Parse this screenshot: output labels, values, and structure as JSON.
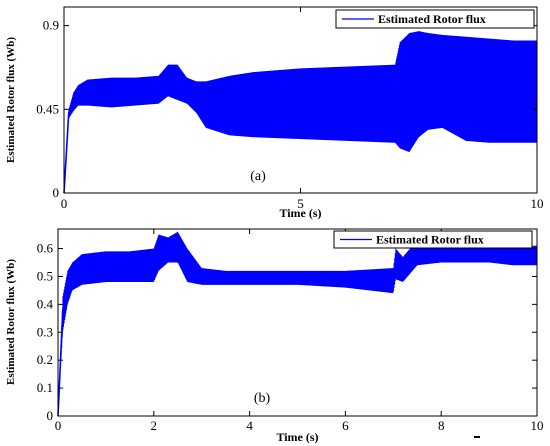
{
  "chart_data": [
    {
      "type": "line",
      "panel_label": "(a)",
      "xlabel": "Time (s)",
      "ylabel": "Estimated Rotor flux  (Wb)",
      "xlim": [
        0,
        10
      ],
      "ylim": [
        0,
        1.0
      ],
      "xticks": [
        0,
        5,
        10
      ],
      "xtick_labels": [
        "0",
        "5",
        "10"
      ],
      "yticks": [
        0,
        0.45,
        0.9
      ],
      "ytick_labels": [
        "0",
        "0.45",
        "0.9"
      ],
      "grid": false,
      "legend_position": "top-right",
      "series": [
        {
          "name": "Estimated Rotor flux",
          "color": "#0000ff",
          "envelope": {
            "t": [
              0.0,
              0.1,
              0.2,
              0.3,
              0.5,
              1.0,
              1.5,
              2.0,
              2.2,
              2.4,
              2.6,
              2.8,
              3.0,
              3.5,
              4.0,
              5.0,
              6.0,
              7.0,
              7.1,
              7.3,
              7.5,
              7.7,
              8.0,
              8.5,
              9.0,
              9.5,
              10.0
            ],
            "upper": [
              0.0,
              0.45,
              0.54,
              0.58,
              0.61,
              0.62,
              0.62,
              0.63,
              0.69,
              0.69,
              0.62,
              0.6,
              0.6,
              0.63,
              0.65,
              0.67,
              0.68,
              0.69,
              0.81,
              0.86,
              0.87,
              0.86,
              0.85,
              0.84,
              0.83,
              0.82,
              0.82
            ],
            "lower": [
              0.0,
              0.4,
              0.44,
              0.47,
              0.47,
              0.46,
              0.47,
              0.48,
              0.52,
              0.5,
              0.48,
              0.43,
              0.35,
              0.31,
              0.3,
              0.29,
              0.28,
              0.27,
              0.24,
              0.22,
              0.3,
              0.34,
              0.35,
              0.28,
              0.27,
              0.27,
              0.27
            ],
            "mid": [
              0.0,
              0.43,
              0.5,
              0.52,
              0.53,
              0.54,
              0.54,
              0.55,
              0.6,
              0.58,
              0.55,
              0.52,
              0.48,
              0.46,
              0.46,
              0.47,
              0.48,
              0.48,
              0.52,
              0.56,
              0.6,
              0.58,
              0.58,
              0.56,
              0.55,
              0.55,
              0.55
            ]
          }
        }
      ]
    },
    {
      "type": "line",
      "panel_label": "(b)",
      "xlabel": "Time (s)",
      "ylabel": "Estimated Rotor flux  (Wb)",
      "xlim": [
        0,
        10
      ],
      "ylim": [
        0,
        0.67
      ],
      "xticks": [
        0,
        2,
        4,
        6,
        8,
        10
      ],
      "xtick_labels": [
        "0",
        "2",
        "4",
        "6",
        "8",
        "10"
      ],
      "yticks": [
        0,
        0.1,
        0.2,
        0.3,
        0.4,
        0.5,
        0.6
      ],
      "ytick_labels": [
        "0",
        "0.1",
        "0.2",
        "0.3",
        "0.4",
        "0.5",
        "0.6"
      ],
      "grid": false,
      "legend_position": "top-right",
      "series": [
        {
          "name": "Estimated Rotor flux",
          "color": "#0000ff",
          "envelope": {
            "t": [
              0.0,
              0.1,
              0.2,
              0.3,
              0.5,
              1.0,
              1.5,
              2.0,
              2.1,
              2.3,
              2.5,
              2.7,
              3.0,
              3.5,
              4.0,
              5.0,
              6.0,
              7.0,
              7.05,
              7.2,
              7.5,
              8.0,
              8.5,
              9.0,
              9.5,
              10.0
            ],
            "upper": [
              0.0,
              0.43,
              0.52,
              0.55,
              0.58,
              0.59,
              0.59,
              0.6,
              0.65,
              0.64,
              0.66,
              0.6,
              0.53,
              0.52,
              0.52,
              0.52,
              0.52,
              0.53,
              0.6,
              0.57,
              0.63,
              0.63,
              0.62,
              0.61,
              0.61,
              0.61
            ],
            "lower": [
              0.0,
              0.3,
              0.4,
              0.45,
              0.47,
              0.48,
              0.48,
              0.48,
              0.52,
              0.55,
              0.55,
              0.48,
              0.47,
              0.47,
              0.47,
              0.47,
              0.46,
              0.44,
              0.49,
              0.48,
              0.54,
              0.55,
              0.55,
              0.55,
              0.54,
              0.54
            ],
            "mid": [
              0.0,
              0.38,
              0.47,
              0.5,
              0.51,
              0.52,
              0.52,
              0.53,
              0.57,
              0.59,
              0.59,
              0.53,
              0.5,
              0.5,
              0.5,
              0.5,
              0.5,
              0.49,
              0.55,
              0.53,
              0.59,
              0.59,
              0.58,
              0.58,
              0.57,
              0.57
            ]
          }
        }
      ]
    }
  ]
}
